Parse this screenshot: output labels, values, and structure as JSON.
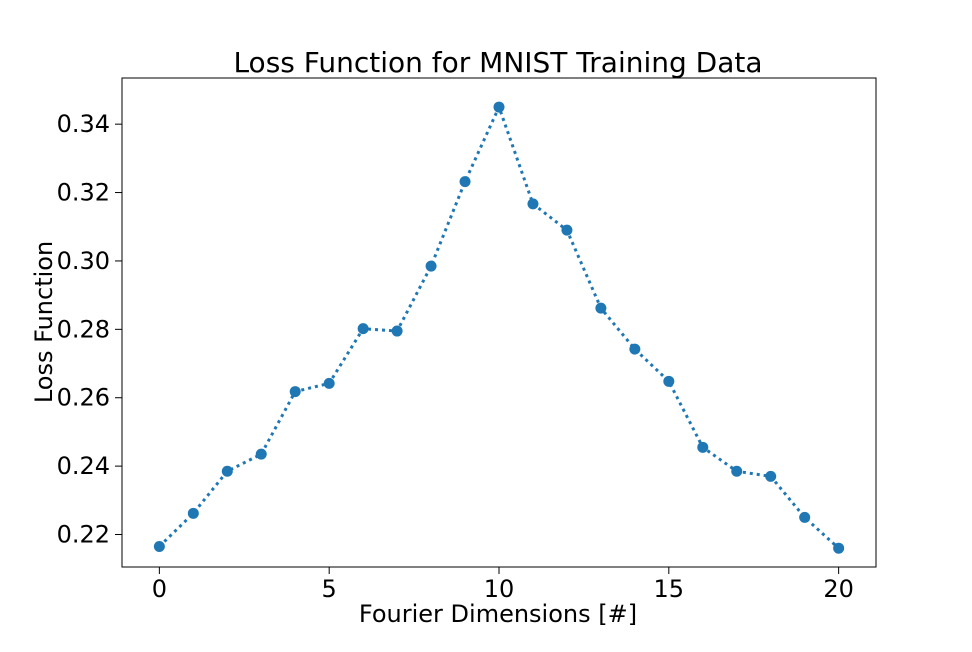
{
  "chart_data": {
    "type": "line",
    "title": "Loss Function for MNIST Training Data",
    "xlabel": "Fourier Dimensions [#]",
    "ylabel": "Loss Function",
    "xlim": [
      -1.1,
      21.1
    ],
    "ylim": [
      0.2105,
      0.3535
    ],
    "xticks": [
      0,
      5,
      10,
      15,
      20
    ],
    "xtick_labels": [
      "0",
      "5",
      "10",
      "15",
      "20"
    ],
    "yticks": [
      0.22,
      0.24,
      0.26,
      0.28,
      0.3,
      0.32,
      0.34
    ],
    "ytick_labels": [
      "0.22",
      "0.24",
      "0.26",
      "0.28",
      "0.30",
      "0.32",
      "0.34"
    ],
    "grid": false,
    "series": [
      {
        "name": "loss",
        "color": "#1f77b4",
        "linestyle": "dotted",
        "marker": "circle",
        "x": [
          0,
          1,
          2,
          3,
          4,
          5,
          6,
          7,
          8,
          9,
          10,
          11,
          12,
          13,
          14,
          15,
          16,
          17,
          18,
          19,
          20
        ],
        "y": [
          0.2165,
          0.2262,
          0.2385,
          0.2435,
          0.2618,
          0.2642,
          0.2802,
          0.2795,
          0.2985,
          0.3232,
          0.345,
          0.3167,
          0.309,
          0.2862,
          0.2742,
          0.2648,
          0.2455,
          0.2385,
          0.237,
          0.225,
          0.216
        ]
      }
    ]
  }
}
